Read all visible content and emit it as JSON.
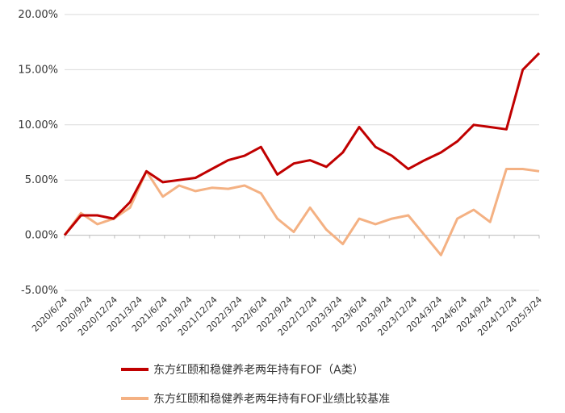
{
  "chart_data": {
    "type": "line",
    "title": "",
    "xlabel": "",
    "ylabel": "",
    "ylim": [
      -5,
      20
    ],
    "y_ticks": [
      20,
      15,
      10,
      5,
      0,
      -5
    ],
    "y_tick_labels": [
      "20.00%",
      "15.00%",
      "10.00%",
      "5.00%",
      "0.00%",
      "-5.00%"
    ],
    "x_ticks": [
      "2020/6/24",
      "2020/9/24",
      "2020/12/24",
      "2021/3/24",
      "2021/6/24",
      "2021/9/24",
      "2021/12/24",
      "2022/3/24",
      "2022/6/24",
      "2022/9/24",
      "2022/12/24",
      "2023/3/24",
      "2023/6/24",
      "2023/9/24",
      "2023/12/24",
      "2024/3/24",
      "2024/6/24",
      "2024/9/24",
      "2024/12/24",
      "2025/3/24"
    ],
    "grid": "horizontal",
    "legend_position": "bottom",
    "series": [
      {
        "name": "东方红颐和稳健养老两年持有FOF（A类）",
        "color": "#C00000",
        "values": [
          0.0,
          1.8,
          1.8,
          1.5,
          3.0,
          5.8,
          4.8,
          5.0,
          5.2,
          6.0,
          6.8,
          7.2,
          8.0,
          5.5,
          6.5,
          6.8,
          6.2,
          7.5,
          9.8,
          8.0,
          7.2,
          6.0,
          6.8,
          7.5,
          8.5,
          10.0,
          9.8,
          9.6,
          15.0,
          16.5
        ]
      },
      {
        "name": "东方红颐和稳健养老两年持有FOF业绩比较基准",
        "color": "#F4B183",
        "values": [
          0.0,
          2.0,
          1.0,
          1.5,
          2.5,
          5.8,
          3.5,
          4.5,
          4.0,
          4.3,
          4.2,
          4.5,
          3.8,
          1.5,
          0.3,
          2.5,
          0.5,
          -0.8,
          1.5,
          1.0,
          1.5,
          1.8,
          0.0,
          -1.8,
          1.5,
          2.3,
          1.2,
          6.0,
          6.0,
          5.8
        ]
      }
    ]
  }
}
